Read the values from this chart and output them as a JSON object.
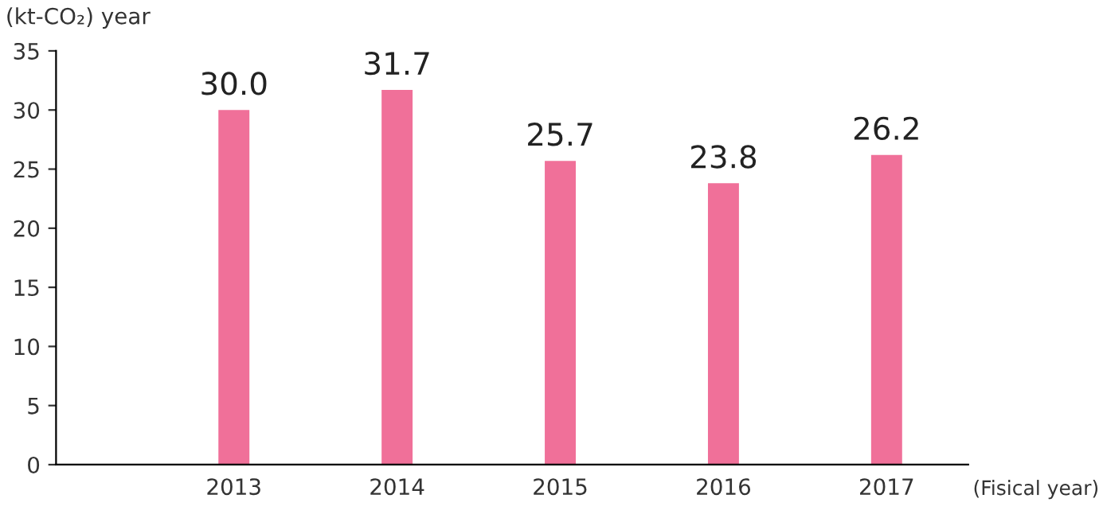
{
  "chart_data": {
    "type": "bar",
    "ylabel": "(kt-CO₂) year",
    "xlabel": "(Fisical year)",
    "categories": [
      "2013",
      "2014",
      "2015",
      "2016",
      "2017"
    ],
    "values": [
      30.0,
      31.7,
      25.7,
      23.8,
      26.2
    ],
    "color": "#f07099",
    "value_labels": [
      "30.0",
      "31.7",
      "25.7",
      "23.8",
      "26.2"
    ],
    "ylim": [
      0,
      35
    ],
    "yticks": [
      0,
      5,
      10,
      15,
      20,
      25,
      30,
      35
    ],
    "grid": false
  }
}
